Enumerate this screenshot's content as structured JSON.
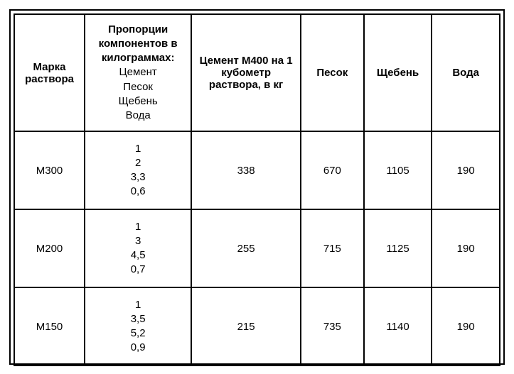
{
  "table": {
    "type": "table",
    "background_color": "#ffffff",
    "border_color": "#000000",
    "text_color": "#000000",
    "font_family": "Arial",
    "header_fontsize": 15,
    "cell_fontsize": 15,
    "columns": [
      {
        "key": "grade",
        "header_bold": "Марка раствора",
        "width_pct": 14.5
      },
      {
        "key": "proportions",
        "header_bold": "Пропорции компонентов в килограммах:",
        "header_sub": [
          "Цемент",
          "Песок",
          "Щебень",
          "Вода"
        ],
        "width_pct": 22
      },
      {
        "key": "cement",
        "header_bold": "Цемент М400 на 1 кубометр раствора, в кг",
        "width_pct": 22.5
      },
      {
        "key": "sand",
        "header_bold": "Песок",
        "width_pct": 13
      },
      {
        "key": "gravel",
        "header_bold": "Щебень",
        "width_pct": 14
      },
      {
        "key": "water",
        "header_bold": "Вода",
        "width_pct": 14
      }
    ],
    "rows": [
      {
        "grade": "М300",
        "proportions": [
          "1",
          "2",
          "3,3",
          "0,6"
        ],
        "cement": "338",
        "sand": "670",
        "gravel": "1105",
        "water": "190"
      },
      {
        "grade": "М200",
        "proportions": [
          "1",
          "3",
          "4,5",
          "0,7"
        ],
        "cement": "255",
        "sand": "715",
        "gravel": "1125",
        "water": "190"
      },
      {
        "grade": "М150",
        "proportions": [
          "1",
          "3,5",
          "5,2",
          "0,9"
        ],
        "cement": "215",
        "sand": "735",
        "gravel": "1140",
        "water": "190"
      }
    ]
  }
}
